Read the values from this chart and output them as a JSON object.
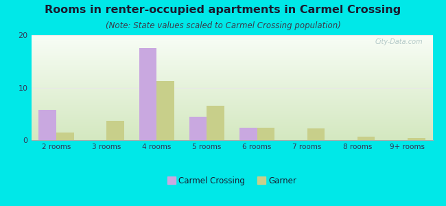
{
  "title": "Rooms in renter-occupied apartments in Carmel Crossing",
  "subtitle": "(Note: State values scaled to Carmel Crossing population)",
  "categories": [
    "2 rooms",
    "3 rooms",
    "4 rooms",
    "5 rooms",
    "6 rooms",
    "7 rooms",
    "8 rooms",
    "9+ rooms"
  ],
  "carmel_crossing": [
    5.8,
    0,
    17.5,
    4.5,
    2.3,
    0,
    0,
    0
  ],
  "garner": [
    1.5,
    3.7,
    11.3,
    6.5,
    2.3,
    2.2,
    0.6,
    0.4
  ],
  "color_carmel": "#c9a8e0",
  "color_garner": "#c8cf8a",
  "ylim": [
    0,
    20
  ],
  "yticks": [
    0,
    10,
    20
  ],
  "background_color": "#00e8e8",
  "grad_top": "#f8fdf6",
  "grad_bottom": "#d4e8c0",
  "bar_width": 0.35,
  "title_fontsize": 11.5,
  "subtitle_fontsize": 8.5,
  "watermark": "City-Data.com",
  "title_color": "#1a1a2e",
  "subtitle_color": "#3a3a4a",
  "tick_color": "#333355",
  "grid_color": "#e8e8e8"
}
